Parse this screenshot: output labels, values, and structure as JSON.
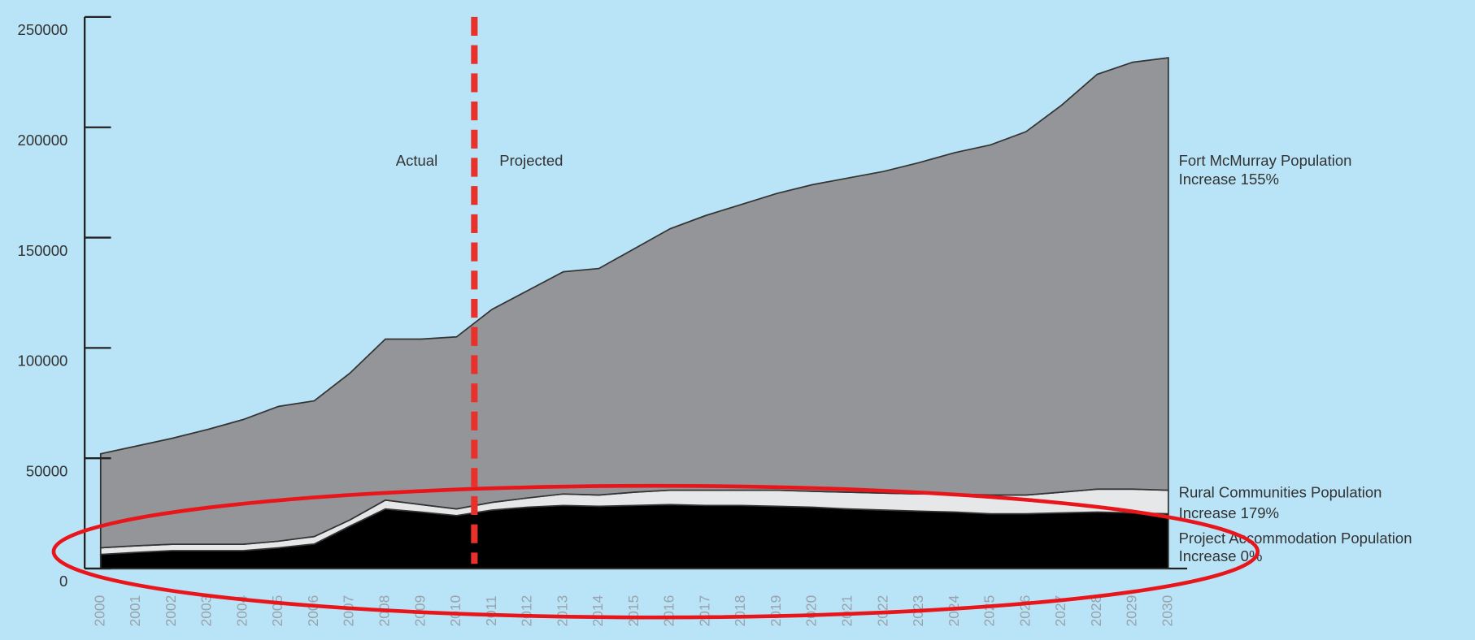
{
  "chart_data": {
    "type": "stacked-area",
    "categories": [
      "2000",
      "2001",
      "2002",
      "2003",
      "2004",
      "2005",
      "2006",
      "2007",
      "2008",
      "2009",
      "2010",
      "2011",
      "2012",
      "2013",
      "2014",
      "2015",
      "2016",
      "2017",
      "2018",
      "2019",
      "2020",
      "2021",
      "2022",
      "2023",
      "2024",
      "2025",
      "2026",
      "2027",
      "2028",
      "2029",
      "2030"
    ],
    "series": [
      {
        "name": "Project Accommodation Population",
        "note": "Increase 0%",
        "color": "#000000",
        "values": [
          6400,
          7300,
          8100,
          8100,
          8100,
          9400,
          11100,
          19200,
          27000,
          25600,
          24000,
          26500,
          27800,
          28600,
          28200,
          28600,
          29000,
          28600,
          28600,
          28200,
          27800,
          27000,
          26500,
          26000,
          25600,
          24800,
          24800,
          25200,
          25600,
          25200,
          24800
        ]
      },
      {
        "name": "Rural Communities Population",
        "note": "Increase 179%",
        "color": "#e6e7e8",
        "values": [
          3000,
          3000,
          2900,
          2900,
          2900,
          3000,
          3400,
          2800,
          4000,
          3400,
          3000,
          3500,
          4200,
          5200,
          5100,
          6000,
          6500,
          6900,
          6900,
          7300,
          7200,
          7600,
          7700,
          7800,
          8200,
          8500,
          8500,
          9400,
          10400,
          10800,
          10700
        ]
      },
      {
        "name": "Fort McMurray Population",
        "note": "Increase 155%",
        "color": "#939598",
        "values": [
          42600,
          45200,
          48000,
          52000,
          56500,
          61100,
          61500,
          66500,
          73000,
          75000,
          78000,
          87500,
          94000,
          100700,
          102700,
          110400,
          118500,
          124500,
          129500,
          134500,
          139000,
          142400,
          145800,
          150200,
          154700,
          158700,
          164700,
          175400,
          188000,
          193500,
          196000
        ]
      }
    ],
    "annotations": [
      "Actual",
      "Projected"
    ],
    "ylim": [
      0,
      250000
    ],
    "yticks": [
      0,
      50000,
      100000,
      150000,
      200000,
      250000
    ]
  }
}
